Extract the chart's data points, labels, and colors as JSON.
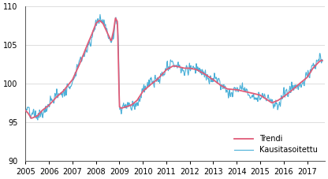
{
  "xlim": [
    2005.0,
    2017.75
  ],
  "ylim": [
    90,
    110
  ],
  "yticks": [
    90,
    95,
    100,
    105,
    110
  ],
  "xticks": [
    2005,
    2006,
    2007,
    2008,
    2009,
    2010,
    2011,
    2012,
    2013,
    2014,
    2015,
    2016,
    2017
  ],
  "trendi_color": "#e05c78",
  "kausi_color": "#4ab0d8",
  "legend_labels": [
    "Trendi",
    "Kausitasoitettu"
  ],
  "trendi_lw": 1.3,
  "kausi_lw": 0.8,
  "bg_color": "#ffffff",
  "grid_color": "#d0d0d0",
  "waypoints_t": [
    2005.0,
    2005.1,
    2005.25,
    2005.5,
    2005.7,
    2006.0,
    2006.3,
    2006.6,
    2007.0,
    2007.3,
    2007.6,
    2007.8,
    2008.0,
    2008.15,
    2008.3,
    2008.5,
    2008.65,
    2008.75,
    2008.83,
    2008.92,
    2009.0,
    2009.08,
    2009.17,
    2009.3,
    2009.5,
    2009.75,
    2010.0,
    2010.3,
    2010.6,
    2011.0,
    2011.3,
    2011.5,
    2011.75,
    2012.0,
    2012.3,
    2012.6,
    2013.0,
    2013.3,
    2013.6,
    2014.0,
    2014.3,
    2014.6,
    2015.0,
    2015.25,
    2015.5,
    2015.75,
    2016.0,
    2016.3,
    2016.6,
    2017.0,
    2017.25,
    2017.5,
    2017.6
  ],
  "waypoints_v": [
    96.5,
    96.2,
    95.5,
    95.8,
    96.5,
    97.2,
    98.2,
    99.0,
    100.5,
    102.5,
    104.8,
    106.2,
    107.8,
    108.2,
    107.8,
    106.5,
    105.5,
    106.8,
    108.5,
    108.0,
    97.0,
    96.8,
    96.9,
    97.0,
    97.2,
    97.8,
    99.0,
    99.8,
    100.5,
    101.8,
    102.3,
    102.2,
    102.0,
    102.0,
    101.8,
    101.3,
    100.5,
    99.8,
    99.3,
    99.2,
    99.0,
    98.8,
    98.5,
    98.0,
    97.5,
    97.8,
    98.3,
    99.0,
    99.8,
    100.8,
    102.0,
    102.8,
    103.0
  ]
}
